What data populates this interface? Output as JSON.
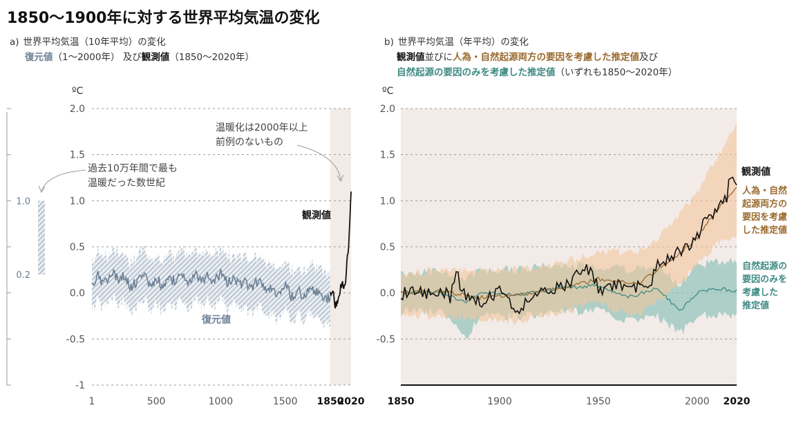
{
  "title": "1850〜1900年に対する世界平均気温の変化",
  "panel_a": {
    "tag": "a)",
    "line1": "世界平均気温（10年平均）の変化",
    "line2_part1": "復元値",
    "line2_part2": "（1〜2000年）",
    "line2_part3": "及び",
    "line2_part4": "観測値",
    "line2_part5": "（1850〜2020年）"
  },
  "panel_b": {
    "tag": "b)",
    "line1": "世界平均気温（年平均）の変化",
    "line2_part1": "観測値",
    "line2_part2": "並びに",
    "line2_part3": "人為・自然起源両方の要因を考慮した推定値",
    "line2_part4": "及び",
    "line3_part1": "自然起源の要因のみを考慮した推定値",
    "line3_part2": "（いずれも1850〜2020年）"
  },
  "chart_data": [
    {
      "type": "line",
      "ylabel": "ºC",
      "ylim": [
        -1,
        2
      ],
      "yticks": [
        "2.0",
        "1.5",
        "1.0",
        "0.5",
        "0.0",
        "-0.5",
        "-1"
      ],
      "xticks": [
        "1",
        "500",
        "1000",
        "1500",
        "1850",
        "2020"
      ],
      "xlim": [
        1,
        2020
      ],
      "shaded_period": [
        1850,
        2020
      ],
      "annotations": {
        "warming": "温暖化は2000年以上\n前例のないもの",
        "past": "過去10万年間で最も\n温暖だった数世紀",
        "observed_label": "観測値",
        "reconstructed_label": "復元値"
      },
      "side_range": {
        "top": "1.0",
        "bottom": "0.2",
        "values": [
          0.2,
          1.0
        ]
      },
      "series": [
        {
          "name": "復元値",
          "color": "#6b7f94",
          "x": [
            1,
            50,
            100,
            150,
            200,
            250,
            300,
            350,
            400,
            450,
            500,
            550,
            600,
            650,
            700,
            750,
            800,
            850,
            900,
            950,
            1000,
            1050,
            1100,
            1150,
            1200,
            1250,
            1300,
            1350,
            1400,
            1450,
            1500,
            1550,
            1600,
            1650,
            1700,
            1750,
            1800,
            1850,
            1900,
            1950,
            2000
          ],
          "values": [
            0.08,
            0.18,
            0.1,
            0.22,
            0.15,
            0.18,
            0.05,
            0.12,
            0.2,
            0.1,
            0.15,
            0.08,
            0.16,
            0.12,
            0.18,
            0.1,
            0.2,
            0.12,
            0.18,
            0.13,
            0.2,
            0.12,
            0.15,
            0.1,
            0.1,
            0.08,
            0.12,
            0.02,
            0.05,
            0.0,
            0.08,
            -0.05,
            0.02,
            -0.06,
            0.05,
            0.02,
            -0.08,
            -0.05,
            0.02,
            0.0,
            0.15
          ]
        },
        {
          "name": "観測値",
          "color": "#111111",
          "x": [
            1850,
            1870,
            1890,
            1910,
            1930,
            1950,
            1970,
            1990,
            2000,
            2010,
            2020
          ],
          "values": [
            0.0,
            0.02,
            -0.12,
            -0.15,
            0.05,
            0.1,
            0.08,
            0.4,
            0.55,
            0.8,
            1.1
          ]
        }
      ]
    },
    {
      "type": "line",
      "ylabel": "ºC",
      "ylim": [
        -1,
        2
      ],
      "yticks": [
        "2.0",
        "1.5",
        "1.0",
        "0.5",
        "0.0",
        "-0.5"
      ],
      "xticks": [
        "1850",
        "1900",
        "1950",
        "2000",
        "2020"
      ],
      "xlim": [
        1850,
        2020
      ],
      "legend": {
        "observed": "観測値",
        "human_natural": "人為・自然\n起源両方の\n要因を考慮\nした推定値",
        "natural": "自然起源の\n要因のみを\n考慮した\n推定値"
      },
      "series": [
        {
          "name": "観測値",
          "color": "#111111",
          "x": [
            1850,
            1855,
            1860,
            1865,
            1870,
            1875,
            1878,
            1880,
            1885,
            1890,
            1895,
            1900,
            1905,
            1910,
            1915,
            1920,
            1925,
            1930,
            1935,
            1940,
            1944,
            1950,
            1955,
            1960,
            1965,
            1970,
            1975,
            1980,
            1985,
            1990,
            1995,
            2000,
            2005,
            2010,
            2015,
            2016,
            2020
          ],
          "values": [
            -0.03,
            0.04,
            0.0,
            -0.02,
            0.05,
            -0.05,
            0.28,
            0.05,
            -0.08,
            -0.1,
            -0.05,
            0.02,
            -0.1,
            -0.18,
            -0.05,
            0.0,
            0.02,
            0.05,
            0.1,
            0.22,
            0.3,
            0.05,
            0.05,
            0.08,
            0.0,
            0.08,
            0.05,
            0.3,
            0.35,
            0.45,
            0.5,
            0.62,
            0.8,
            0.9,
            1.05,
            1.25,
            1.2
          ]
        },
        {
          "name": "人為・自然起源両方の要因を考慮した推定値",
          "color": "#9a6a2e",
          "x": [
            1850,
            1870,
            1890,
            1910,
            1930,
            1950,
            1960,
            1970,
            1980,
            1990,
            2000,
            2010,
            2020
          ],
          "values": [
            0.0,
            0.02,
            -0.05,
            -0.02,
            0.05,
            0.15,
            0.12,
            0.1,
            0.25,
            0.4,
            0.6,
            0.9,
            1.15
          ],
          "band_upper": [
            0.2,
            0.25,
            0.25,
            0.25,
            0.3,
            0.45,
            0.45,
            0.45,
            0.6,
            0.8,
            1.1,
            1.45,
            1.85
          ],
          "band_lower": [
            -0.25,
            -0.25,
            -0.3,
            -0.3,
            -0.2,
            -0.1,
            -0.2,
            -0.25,
            -0.1,
            0.1,
            0.3,
            0.55,
            0.6
          ]
        },
        {
          "name": "自然起源の要因のみを考慮した推定値",
          "color": "#3f8a84",
          "x": [
            1850,
            1870,
            1883,
            1890,
            1910,
            1930,
            1950,
            1965,
            1980,
            1991,
            2000,
            2010,
            2020
          ],
          "values": [
            0.0,
            0.0,
            -0.1,
            0.0,
            -0.02,
            0.05,
            0.08,
            -0.05,
            0.05,
            -0.2,
            0.0,
            0.05,
            0.02
          ],
          "band_upper": [
            0.2,
            0.25,
            0.15,
            0.25,
            0.25,
            0.3,
            0.3,
            0.25,
            0.3,
            0.1,
            0.3,
            0.35,
            0.35
          ],
          "band_lower": [
            -0.2,
            -0.2,
            -0.5,
            -0.25,
            -0.25,
            -0.2,
            -0.2,
            -0.3,
            -0.25,
            -0.45,
            -0.25,
            -0.25,
            -0.25
          ]
        }
      ]
    }
  ]
}
